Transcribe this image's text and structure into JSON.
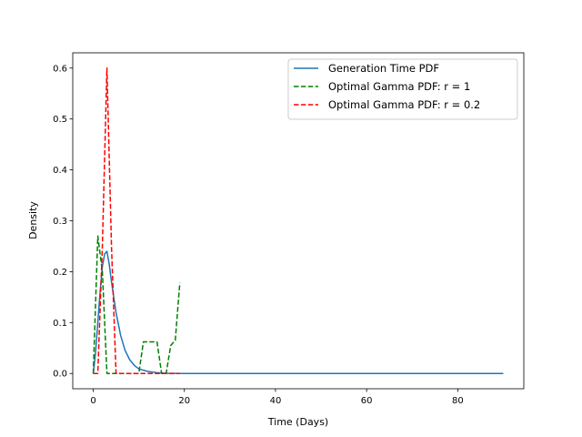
{
  "chart_data": {
    "type": "line",
    "title": "",
    "xlabel": "Time (Days)",
    "ylabel": "Density",
    "xlim": [
      -4.5,
      94.5
    ],
    "ylim": [
      -0.03,
      0.63
    ],
    "xticks": [
      0,
      20,
      40,
      60,
      80
    ],
    "yticks": [
      0.0,
      0.1,
      0.2,
      0.3,
      0.4,
      0.5,
      0.6
    ],
    "xtick_labels": [
      "0",
      "20",
      "40",
      "60",
      "80"
    ],
    "ytick_labels": [
      "0.0",
      "0.1",
      "0.2",
      "0.3",
      "0.4",
      "0.5",
      "0.6"
    ],
    "grid": false,
    "legend": {
      "position": "top-right"
    },
    "series": [
      {
        "name": "Generation Time PDF",
        "color": "#1f77b4",
        "dash": "solid",
        "x": [
          0,
          0.5,
          1,
          1.5,
          2,
          2.5,
          3,
          3.5,
          4,
          5,
          6,
          7,
          8,
          9,
          10,
          12,
          14,
          16,
          18,
          20,
          25,
          30,
          40,
          50,
          60,
          70,
          80,
          90
        ],
        "y": [
          0.0,
          0.04,
          0.1,
          0.16,
          0.21,
          0.235,
          0.24,
          0.215,
          0.18,
          0.12,
          0.075,
          0.045,
          0.027,
          0.016,
          0.009,
          0.004,
          0.0015,
          0.0005,
          0.0002,
          0.0,
          0.0,
          0.0,
          0.0,
          0.0,
          0.0,
          0.0,
          0.0,
          0.0
        ]
      },
      {
        "name": "Optimal Gamma PDF: r = 1",
        "color": "#008000",
        "dash": "dashed",
        "x": [
          0,
          1,
          2,
          3,
          4,
          5,
          6,
          7,
          8,
          9,
          10,
          11,
          12,
          13,
          14,
          15,
          16,
          17,
          18,
          19
        ],
        "y": [
          0.0,
          0.27,
          0.2,
          0.0,
          0.0,
          0.0,
          0.0,
          0.0,
          0.0,
          0.0,
          0.0,
          0.062,
          0.062,
          0.062,
          0.062,
          0.0,
          0.0,
          0.055,
          0.065,
          0.178
        ]
      },
      {
        "name": "Optimal Gamma PDF: r = 0.2",
        "color": "#ff0000",
        "dash": "dashed",
        "x": [
          0,
          1,
          2,
          3,
          4,
          5,
          6,
          7,
          8,
          9,
          10,
          11,
          12,
          13,
          14,
          15,
          16,
          17,
          18,
          19
        ],
        "y": [
          0.0,
          0.0,
          0.25,
          0.6,
          0.25,
          0.0,
          0.0,
          0.0,
          0.0,
          0.0,
          0.0,
          0.0,
          0.0,
          0.0,
          0.0,
          0.0,
          0.0,
          0.0,
          0.0,
          0.0
        ]
      }
    ]
  }
}
